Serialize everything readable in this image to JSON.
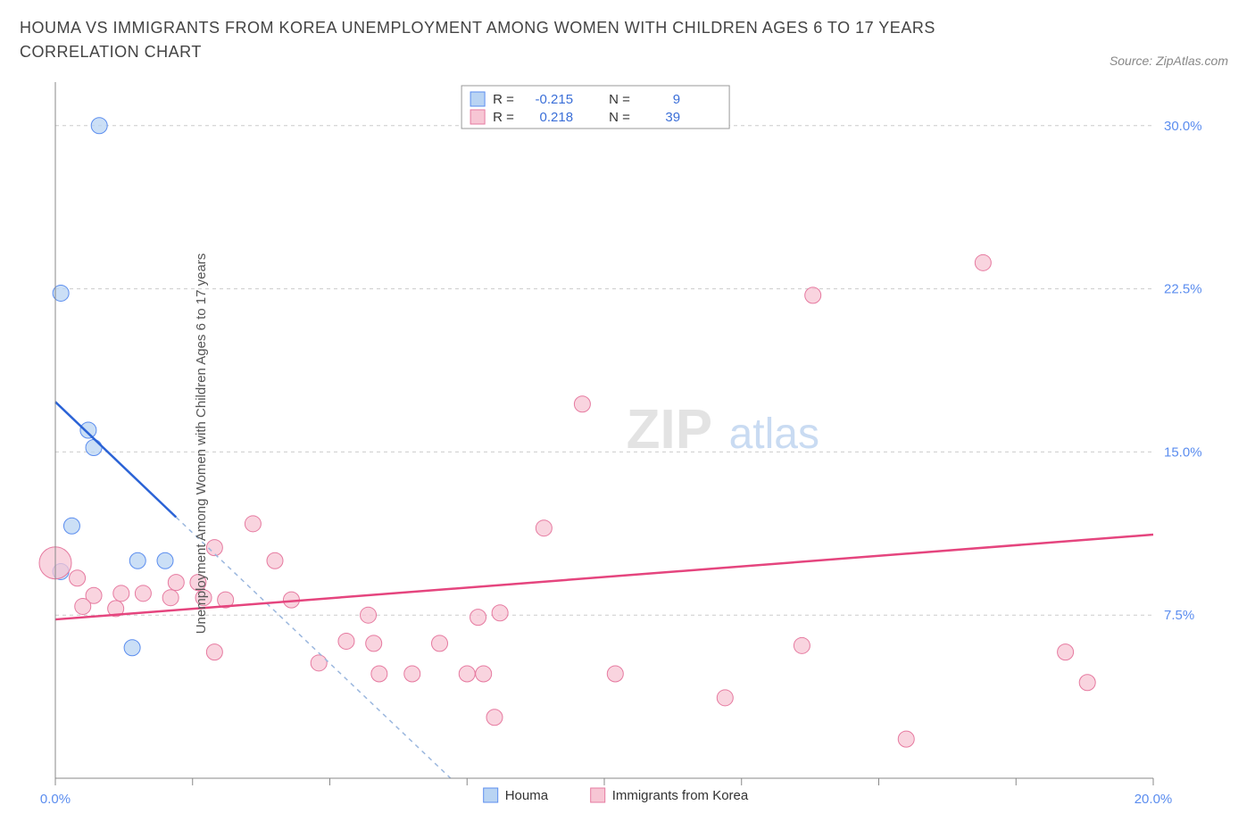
{
  "title": "HOUMA VS IMMIGRANTS FROM KOREA UNEMPLOYMENT AMONG WOMEN WITH CHILDREN AGES 6 TO 17 YEARS CORRELATION CHART",
  "source": "Source: ZipAtlas.com",
  "ylabel": "Unemployment Among Women with Children Ages 6 to 17 years",
  "watermark": {
    "part1": "ZIP",
    "part2": "atlas"
  },
  "legend_top": {
    "series1": {
      "swatch_fill": "#b9d4f3",
      "swatch_stroke": "#5b8def",
      "r_label": "R =",
      "r_value": "-0.215",
      "n_label": "N =",
      "n_value": "9"
    },
    "series2": {
      "swatch_fill": "#f7c6d4",
      "swatch_stroke": "#e67aa0",
      "r_label": "R =",
      "r_value": "0.218",
      "n_label": "N =",
      "n_value": "39"
    }
  },
  "legend_bottom": {
    "series1": {
      "swatch_fill": "#b9d4f3",
      "swatch_stroke": "#5b8def",
      "label": "Houma"
    },
    "series2": {
      "swatch_fill": "#f7c6d4",
      "swatch_stroke": "#e67aa0",
      "label": "Immigrants from Korea"
    }
  },
  "chart": {
    "type": "scatter",
    "background_color": "#ffffff",
    "grid_color": "#cccccc",
    "axis_color": "#888888",
    "xlim": [
      0,
      20
    ],
    "ylim": [
      0,
      32
    ],
    "xticks": [
      0,
      2.5,
      5,
      7.5,
      10,
      12.5,
      15,
      17.5,
      20
    ],
    "xtick_labels": {
      "0": "0.0%",
      "20": "20.0%"
    },
    "yticks": [
      7.5,
      15,
      22.5,
      30
    ],
    "ytick_labels": {
      "7.5": "7.5%",
      "15": "15.0%",
      "22.5": "22.5%",
      "30": "30.0%"
    },
    "marker_radius": 9,
    "marker_opacity": 0.75,
    "line_width": 2.5,
    "series": [
      {
        "name": "Houma",
        "color_fill": "#b9d4f3",
        "color_stroke": "#5b8def",
        "points": [
          {
            "x": 0.8,
            "y": 30.0
          },
          {
            "x": 0.1,
            "y": 22.3
          },
          {
            "x": 0.6,
            "y": 16.0
          },
          {
            "x": 0.7,
            "y": 15.2
          },
          {
            "x": 0.3,
            "y": 11.6
          },
          {
            "x": 1.5,
            "y": 10.0
          },
          {
            "x": 2.0,
            "y": 10.0
          },
          {
            "x": 0.1,
            "y": 9.5
          },
          {
            "x": 1.4,
            "y": 6.0
          }
        ],
        "trend": {
          "x1": 0,
          "y1": 17.3,
          "x2": 2.2,
          "y2": 12.0,
          "color": "#2b63d6",
          "dash": false
        },
        "trend_ext": {
          "x1": 2.2,
          "y1": 12.0,
          "x2": 7.2,
          "y2": 0,
          "color": "#9bb7de",
          "dash": true
        }
      },
      {
        "name": "Immigrants from Korea",
        "color_fill": "#f7c6d4",
        "color_stroke": "#e67aa0",
        "points": [
          {
            "x": 16.9,
            "y": 23.7
          },
          {
            "x": 13.8,
            "y": 22.2
          },
          {
            "x": 9.6,
            "y": 17.2
          },
          {
            "x": 3.6,
            "y": 11.7
          },
          {
            "x": 8.9,
            "y": 11.5
          },
          {
            "x": 2.9,
            "y": 10.6
          },
          {
            "x": 0.0,
            "y": 9.9,
            "big": true
          },
          {
            "x": 4.0,
            "y": 10.0
          },
          {
            "x": 2.2,
            "y": 9.0
          },
          {
            "x": 2.6,
            "y": 9.0
          },
          {
            "x": 0.4,
            "y": 9.2
          },
          {
            "x": 0.7,
            "y": 8.4
          },
          {
            "x": 1.2,
            "y": 8.5
          },
          {
            "x": 1.6,
            "y": 8.5
          },
          {
            "x": 2.1,
            "y": 8.3
          },
          {
            "x": 2.7,
            "y": 8.3
          },
          {
            "x": 3.1,
            "y": 8.2
          },
          {
            "x": 4.3,
            "y": 8.2
          },
          {
            "x": 0.5,
            "y": 7.9
          },
          {
            "x": 1.1,
            "y": 7.8
          },
          {
            "x": 5.7,
            "y": 7.5
          },
          {
            "x": 7.7,
            "y": 7.4
          },
          {
            "x": 8.1,
            "y": 7.6
          },
          {
            "x": 5.3,
            "y": 6.3
          },
          {
            "x": 5.8,
            "y": 6.2
          },
          {
            "x": 7.0,
            "y": 6.2
          },
          {
            "x": 13.6,
            "y": 6.1
          },
          {
            "x": 18.4,
            "y": 5.8
          },
          {
            "x": 2.9,
            "y": 5.8
          },
          {
            "x": 4.8,
            "y": 5.3
          },
          {
            "x": 5.9,
            "y": 4.8
          },
          {
            "x": 6.5,
            "y": 4.8
          },
          {
            "x": 7.5,
            "y": 4.8
          },
          {
            "x": 7.8,
            "y": 4.8
          },
          {
            "x": 10.2,
            "y": 4.8
          },
          {
            "x": 18.8,
            "y": 4.4
          },
          {
            "x": 12.2,
            "y": 3.7
          },
          {
            "x": 8.0,
            "y": 2.8
          },
          {
            "x": 15.5,
            "y": 1.8
          }
        ],
        "trend": {
          "x1": 0,
          "y1": 7.3,
          "x2": 20,
          "y2": 11.2,
          "color": "#e5457e",
          "dash": false
        }
      }
    ]
  }
}
